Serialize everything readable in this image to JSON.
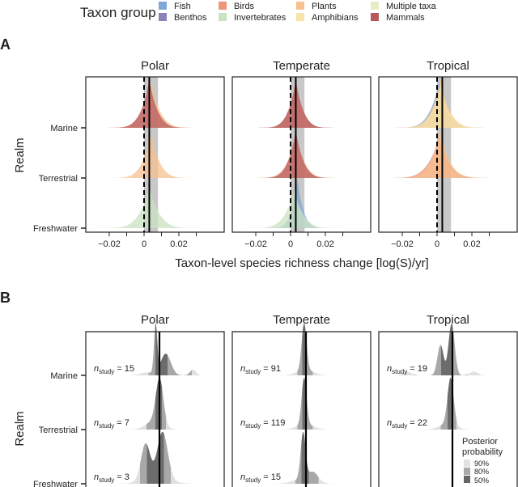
{
  "legend": {
    "title": "Taxon group",
    "items": [
      {
        "label": "Fish",
        "color": "#7fa8d6"
      },
      {
        "label": "Benthos",
        "color": "#8a82b8"
      },
      {
        "label": "Birds",
        "color": "#ee9477"
      },
      {
        "label": "Invertebrates",
        "color": "#c9e3c2"
      },
      {
        "label": "Plants",
        "color": "#f6c08f"
      },
      {
        "label": "Amphibians",
        "color": "#f8e3a8"
      },
      {
        "label": "Multiple taxa",
        "color": "#e6efc4"
      },
      {
        "label": "Mammals",
        "color": "#b8585e"
      }
    ]
  },
  "panel_a": {
    "letter": "A",
    "ylabel": "Realm",
    "xlabel": "Taxon-level species richness change [log(S)/yr]",
    "tick_labels": [
      "−0.02",
      "0",
      "0.02"
    ]
  },
  "panel_b": {
    "letter": "B",
    "ylabel": "Realm",
    "posterior_legend": {
      "title_1": "Posterior",
      "title_2": "probability",
      "levels": [
        "90%",
        "80%",
        "50%"
      ]
    }
  },
  "chart_data": [
    {
      "type": "ridgeline",
      "panel": "A",
      "facets": [
        "Polar",
        "Temperate",
        "Tropical"
      ],
      "realms": [
        "Marine",
        "Terrestrial",
        "Freshwater"
      ],
      "xlabel": "Taxon-level species richness change [log(S)/yr]",
      "ylabel": "Realm",
      "xticks": [
        -0.02,
        0,
        0.02
      ],
      "reference_line_dashed": 0,
      "overall_estimate": 0.003,
      "overall_interval": [
        0.0,
        0.008
      ],
      "series": {
        "Polar": {
          "Marine": [
            {
              "taxon": "Plants",
              "mode": 0.004,
              "spread": 0.006,
              "peak": 0.95
            },
            {
              "taxon": "Mammals",
              "mode": 0.003,
              "spread": 0.0055,
              "peak": 1.0
            }
          ],
          "Terrestrial": [
            {
              "taxon": "Plants",
              "mode": 0.004,
              "spread": 0.0055,
              "peak": 0.95
            }
          ],
          "Freshwater": [
            {
              "taxon": "Invertebrates",
              "mode": 0.003,
              "spread": 0.0065,
              "peak": 0.85
            }
          ]
        },
        "Temperate": {
          "Marine": [
            {
              "taxon": "Benthos",
              "mode": 0.003,
              "spread": 0.005,
              "peak": 0.9
            },
            {
              "taxon": "Plants",
              "mode": 0.003,
              "spread": 0.005,
              "peak": 0.95
            },
            {
              "taxon": "Mammals",
              "mode": 0.003,
              "spread": 0.005,
              "peak": 1.0
            }
          ],
          "Terrestrial": [
            {
              "taxon": "Plants",
              "mode": 0.003,
              "spread": 0.0055,
              "peak": 0.95
            },
            {
              "taxon": "Mammals",
              "mode": 0.003,
              "spread": 0.005,
              "peak": 1.0
            }
          ],
          "Freshwater": [
            {
              "taxon": "Fish",
              "mode": 0.004,
              "spread": 0.004,
              "peak": 1.0
            },
            {
              "taxon": "Invertebrates",
              "mode": 0.002,
              "spread": 0.006,
              "peak": 0.8
            }
          ]
        },
        "Tropical": {
          "Marine": [
            {
              "taxon": "Fish",
              "mode": 0.001,
              "spread": 0.006,
              "peak": 0.95
            },
            {
              "taxon": "Plants",
              "mode": 0.002,
              "spread": 0.006,
              "peak": 1.0
            },
            {
              "taxon": "Amphibians",
              "mode": 0.002,
              "spread": 0.006,
              "peak": 0.9
            }
          ],
          "Terrestrial": [
            {
              "taxon": "Birds",
              "mode": 0.001,
              "spread": 0.007,
              "peak": 0.85
            },
            {
              "taxon": "Plants",
              "mode": 0.002,
              "spread": 0.006,
              "peak": 1.0
            }
          ],
          "Freshwater": []
        }
      }
    },
    {
      "type": "ridgeline",
      "panel": "B",
      "facets": [
        "Polar",
        "Temperate",
        "Tropical"
      ],
      "realms": [
        "Marine",
        "Terrestrial",
        "Freshwater"
      ],
      "ylabel": "Realm",
      "overall_estimate": 0.0044,
      "series": {
        "Polar": {
          "Marine": {
            "n_study": 15,
            "components": [
              [
                0.0025,
                0.0008,
                1.0
              ],
              [
                0.0075,
                0.0025,
                0.45
              ],
              [
                0.021,
                0.0015,
                0.12
              ],
              [
                -0.002,
                0.003,
                0.06
              ]
            ]
          },
          "Terrestrial": {
            "n_study": 7,
            "components": [
              [
                0.0045,
                0.0018,
                1.0
              ],
              [
                0.002,
                0.004,
                0.2
              ]
            ]
          },
          "Freshwater": {
            "n_study": 3,
            "components": [
              [
                -0.0025,
                0.0022,
                0.55
              ],
              [
                0.006,
                0.0025,
                0.7
              ],
              [
                0.003,
                0.006,
                0.12
              ]
            ]
          }
        },
        "Temperate": {
          "Marine": {
            "n_study": 91,
            "components": [
              [
                0.0035,
                0.0012,
                1.0
              ],
              [
                0.004,
                0.004,
                0.12
              ]
            ]
          },
          "Terrestrial": {
            "n_study": 119,
            "components": [
              [
                0.0035,
                0.0012,
                1.0
              ],
              [
                0.004,
                0.004,
                0.12
              ]
            ]
          },
          "Freshwater": {
            "n_study": 15,
            "components": [
              [
                0.003,
                0.0012,
                1.0
              ],
              [
                0.008,
                0.0025,
                0.2
              ],
              [
                0.003,
                0.005,
                0.1
              ]
            ]
          }
        },
        "Tropical": {
          "Marine": {
            "n_study": 19,
            "components": [
              [
                -0.0015,
                0.0015,
                0.5
              ],
              [
                0.004,
                0.0015,
                0.85
              ],
              [
                -0.018,
                0.002,
                0.06
              ],
              [
                0.015,
                0.002,
                0.06
              ]
            ]
          },
          "Terrestrial": {
            "n_study": 22,
            "components": [
              [
                0.0035,
                0.0015,
                1.0
              ],
              [
                0.002,
                0.004,
                0.12
              ]
            ]
          },
          "Freshwater": null
        }
      }
    }
  ]
}
